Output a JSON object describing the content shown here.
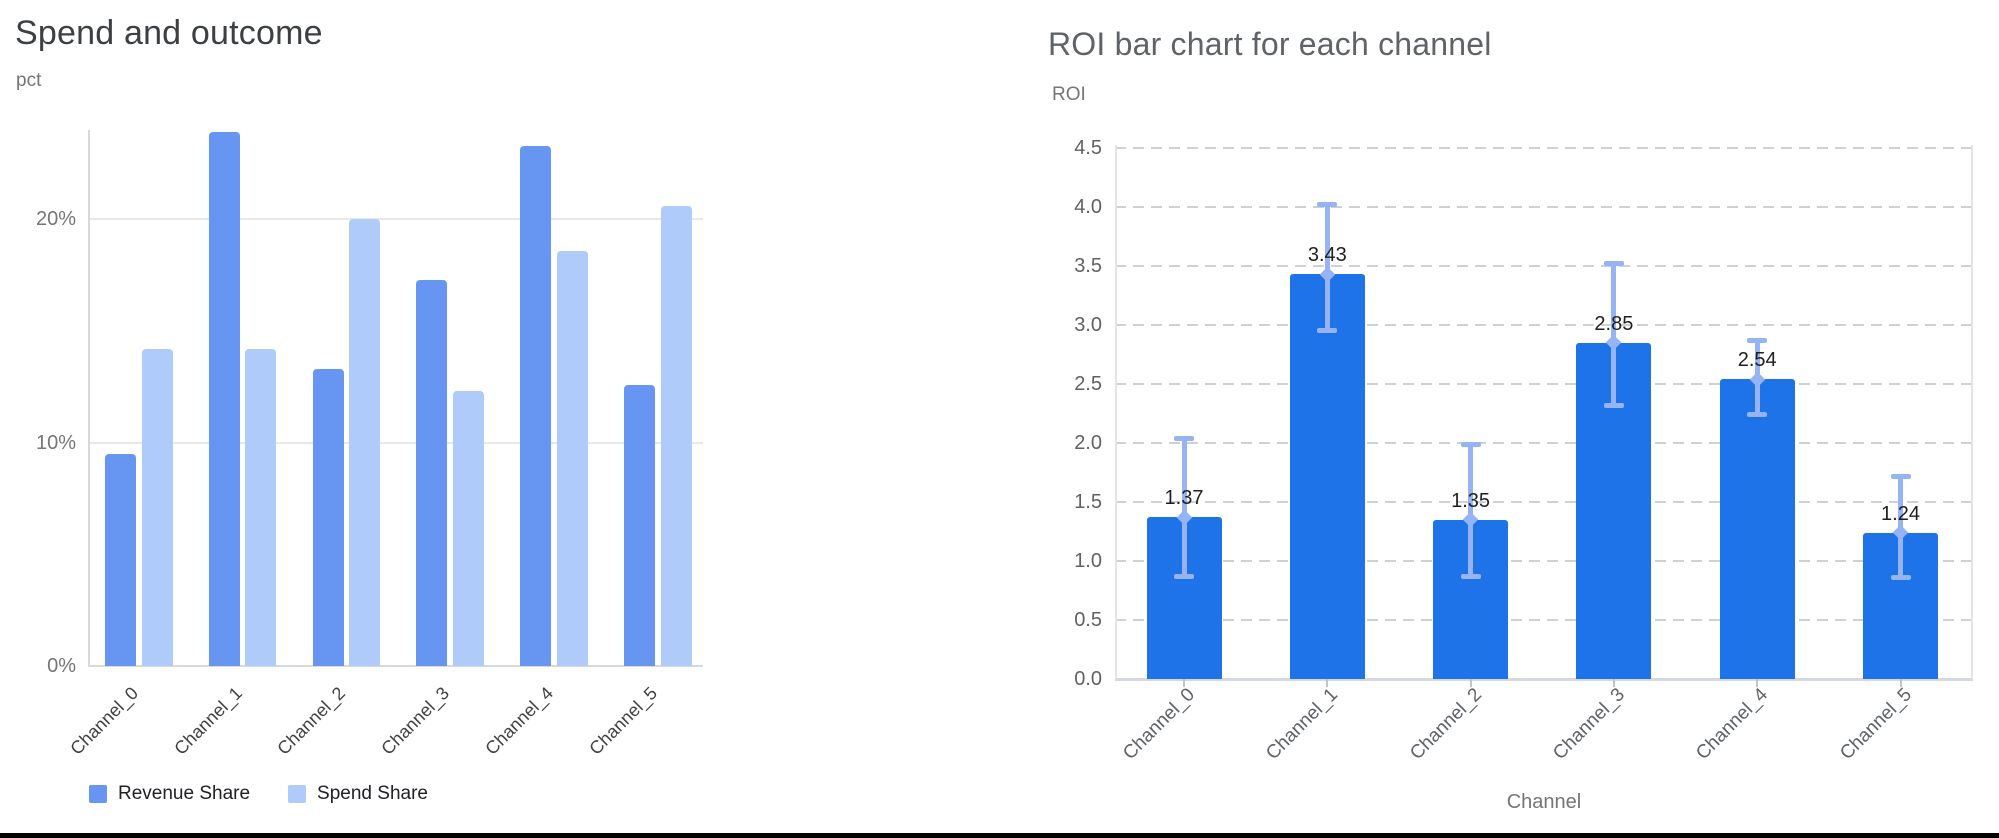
{
  "chart_data": [
    {
      "type": "bar",
      "title": "Spend and outcome",
      "ylabel": "pct",
      "xlabel": "",
      "categories": [
        "Channel_0",
        "Channel_1",
        "Channel_2",
        "Channel_3",
        "Channel_4",
        "Channel_5"
      ],
      "series": [
        {
          "name": "Revenue Share",
          "color": "#6695F2",
          "values": [
            9.5,
            23.9,
            13.3,
            17.3,
            23.3,
            12.6
          ]
        },
        {
          "name": "Spend Share",
          "color": "#AECBFA",
          "values": [
            14.2,
            14.2,
            20.0,
            12.3,
            18.6,
            20.6
          ]
        }
      ],
      "unit": "percent",
      "ylim": [
        0,
        24
      ],
      "y_ticks": {
        "labels": [
          "0%",
          "10%",
          "20%"
        ],
        "values": [
          0,
          10,
          20
        ]
      },
      "grid": "solid",
      "legend_position": "bottom-left"
    },
    {
      "type": "bar",
      "title": "ROI bar chart for each channel",
      "ylabel": "ROI",
      "xlabel": "Channel",
      "categories": [
        "Channel_0",
        "Channel_1",
        "Channel_2",
        "Channel_3",
        "Channel_4",
        "Channel_5"
      ],
      "values": [
        1.37,
        3.43,
        1.35,
        2.85,
        2.54,
        1.24
      ],
      "value_labels": [
        "1.37",
        "3.43",
        "1.35",
        "2.85",
        "2.54",
        "1.24"
      ],
      "error_low": [
        0.87,
        2.95,
        0.87,
        2.32,
        2.24,
        0.86
      ],
      "error_high": [
        2.04,
        4.02,
        1.99,
        3.52,
        2.87,
        1.72
      ],
      "bar_color": "#1F73E8",
      "error_color": "#96B4F4",
      "ylim": [
        0,
        4.5
      ],
      "y_ticks": {
        "labels": [
          "0.0",
          "0.5",
          "1.0",
          "1.5",
          "2.0",
          "2.5",
          "3.0",
          "3.5",
          "4.0",
          "4.5"
        ],
        "values": [
          0,
          0.5,
          1,
          1.5,
          2,
          2.5,
          3,
          3.5,
          4,
          4.5
        ]
      },
      "grid": "dashed",
      "legend_position": "none"
    }
  ],
  "page": {
    "background": "#ffffff",
    "bottom_border_color": "#000000"
  }
}
